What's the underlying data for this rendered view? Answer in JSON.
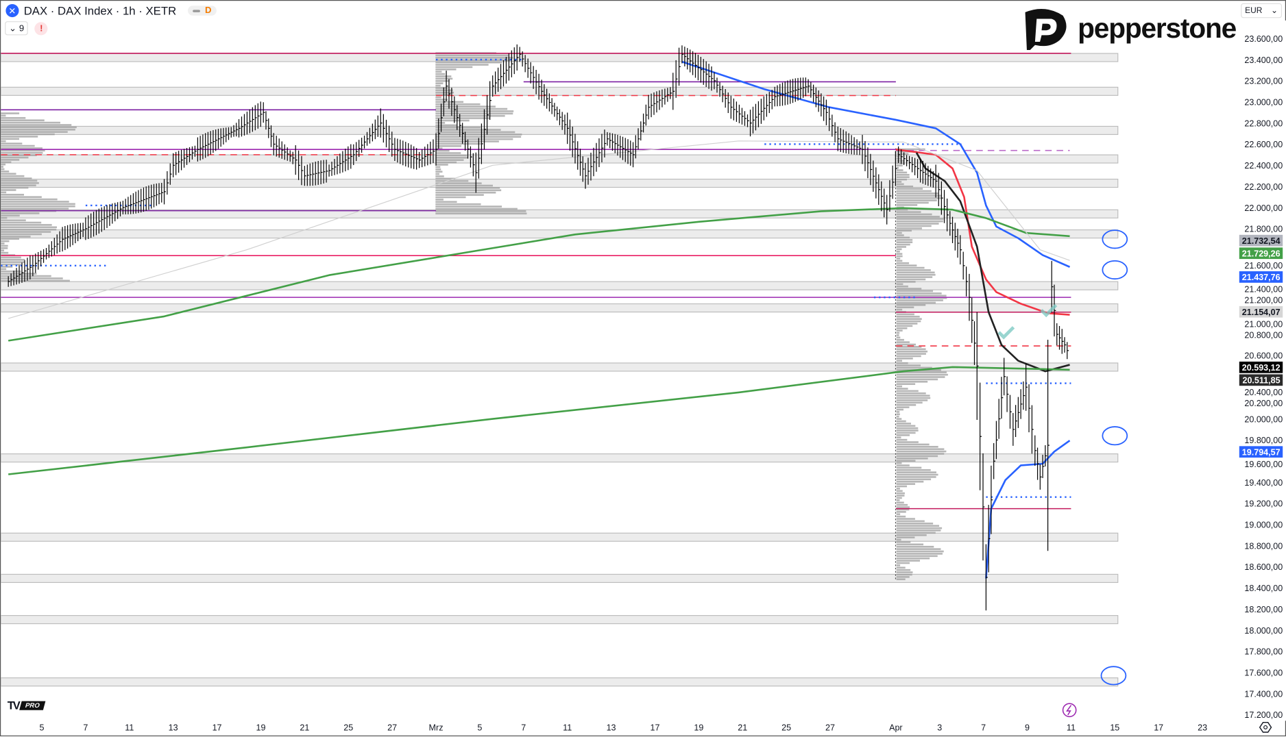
{
  "header": {
    "symbol_title": "DAX · DAX Index · 1h · XETR",
    "symbol_icon": "x-logo-icon",
    "badge": "D",
    "indicators_count": "9",
    "alert": "!"
  },
  "brand": {
    "name": "pepperstone"
  },
  "currency": "EUR",
  "watermark": {
    "text": "PRO"
  },
  "chart_data": {
    "type": "line",
    "title": "",
    "price_axis": [
      "23.600,00",
      "23.400,00",
      "23.200,00",
      "23.000,00",
      "22.800,00",
      "22.600,00",
      "22.400,00",
      "22.200,00",
      "22.000,00",
      "21.800,00",
      "21.600,00",
      "21.400,00",
      "21.200,00",
      "21.000,00",
      "20.800,00",
      "20.600,00",
      "20.400,00",
      "20.200,00",
      "20.000,00",
      "19.800,00",
      "19.600,00",
      "19.400,00",
      "19.200,00",
      "19.000,00",
      "18.800,00",
      "18.600,00",
      "18.400,00",
      "18.200,00",
      "18.000,00",
      "17.800,00",
      "17.600,00",
      "17.400,00",
      "17.200,00"
    ],
    "ylim": [
      17200,
      23600
    ],
    "time_axis": [
      "5",
      "7",
      "11",
      "13",
      "17",
      "19",
      "21",
      "25",
      "27",
      "Mrz",
      "5",
      "7",
      "11",
      "13",
      "17",
      "19",
      "21",
      "25",
      "27",
      "Apr",
      "3",
      "7",
      "9",
      "11",
      "15",
      "17",
      "23"
    ],
    "price_labels": [
      {
        "value": "21.732,54",
        "price": 21732.54,
        "bg": "#b2b5be",
        "fg": "#131722"
      },
      {
        "value": "21.729,26",
        "price": 21729.26,
        "bg": "#43a047",
        "fg": "#ffffff"
      },
      {
        "value": "21.437,76",
        "price": 21437.76,
        "bg": "#2962ff",
        "fg": "#ffffff"
      },
      {
        "value": "21.154,07",
        "price": 21154.07,
        "bg": "#d6d6d6",
        "fg": "#131722"
      },
      {
        "value": "20.593,12",
        "price": 20593.12,
        "bg": "#000000",
        "fg": "#ffffff"
      },
      {
        "value": "20.511,85",
        "price": 20511.85,
        "bg": "#2a2a2a",
        "fg": "#ffffff"
      },
      {
        "value": "19.794,57",
        "price": 19794.57,
        "bg": "#2962ff",
        "fg": "#ffffff"
      }
    ],
    "price": [
      [
        "Feb 3 13:00",
        21300
      ],
      [
        "Feb 4 14:00",
        21450
      ],
      [
        "Feb 5 17:00",
        21700
      ],
      [
        "Feb 7 09:00",
        21800
      ],
      [
        "Feb 10 15:00",
        22000
      ],
      [
        "Feb 12 14:00",
        22150
      ],
      [
        "Feb 13 09:00",
        22400
      ],
      [
        "Feb 14 10:00",
        22550
      ],
      [
        "Feb 18 09:00",
        22750
      ],
      [
        "Feb 19 10:00",
        22900
      ],
      [
        "Feb 19 14:00",
        22600
      ],
      [
        "Feb 20 14:00",
        22450
      ],
      [
        "Feb 21 09:00",
        22300
      ],
      [
        "Feb 24 10:00",
        22350
      ],
      [
        "Feb 25 11:00",
        22500
      ],
      [
        "Feb 26 13:00",
        22800
      ],
      [
        "Feb 27 10:00",
        22550
      ],
      [
        "Feb 28 11:00",
        22450
      ],
      [
        "Mrz 3 09:00",
        22550
      ],
      [
        "Mrz 3 13:00",
        23150
      ],
      [
        "Mrz 4 16:00",
        22330
      ],
      [
        "Mrz 5 14:00",
        23150
      ],
      [
        "Mrz 6 16:00",
        23450
      ],
      [
        "Mrz 7 16:00",
        23100
      ],
      [
        "Mrz 11 09:00",
        22750
      ],
      [
        "Mrz 11 16:00",
        22300
      ],
      [
        "Mrz 12 16:00",
        22650
      ],
      [
        "Mrz 14 09:00",
        22500
      ],
      [
        "Mrz 14 15:00",
        22950
      ],
      [
        "Mrz 17 16:00",
        23100
      ],
      [
        "Mrz 18 11:00",
        23450
      ],
      [
        "Mrz 19 15:00",
        23200
      ],
      [
        "Mrz 20 13:00",
        22950
      ],
      [
        "Mrz 21 12:00",
        22800
      ],
      [
        "Mrz 24 13:00",
        23050
      ],
      [
        "Mrz 26 09:00",
        23150
      ],
      [
        "Mrz 26 16:00",
        22900
      ],
      [
        "Mrz 27 12:00",
        22650
      ],
      [
        "Mrz 28 13:00",
        22550
      ],
      [
        "Mrz 31 14:00",
        21980
      ],
      [
        "Apr 1 10:00",
        22500
      ],
      [
        "Apr 2 10:00",
        22350
      ],
      [
        "Apr 2 16:00",
        22250
      ],
      [
        "Apr 3 13:00",
        21850
      ],
      [
        "Apr 3 17:00",
        21600
      ],
      [
        "Apr 4 12:00",
        21150
      ],
      [
        "Apr 4 15:00",
        20500
      ],
      [
        "Apr 7 10:00",
        18500
      ],
      [
        "Apr 7 13:00",
        19600
      ],
      [
        "Apr 7 17:00",
        20400
      ],
      [
        "Apr 8 12:00",
        19900
      ],
      [
        "Apr 8 17:00",
        20300
      ],
      [
        "Apr 9 12:00",
        19700
      ],
      [
        "Apr 9 14:00",
        19450
      ],
      [
        "Apr 9 17:00",
        19750
      ],
      [
        "Apr 10 10:00",
        21250
      ],
      [
        "Apr 10 12:00",
        20800
      ],
      [
        "Apr 10 15:00",
        20700
      ],
      [
        "Apr 10 17:00",
        20593
      ]
    ],
    "series": [
      {
        "color": "#2962ff",
        "points": [
          [
            "Mrz 18 11:00",
            23380
          ],
          [
            "Mrz 24 09:00",
            23120
          ],
          [
            "Mrz 26 17:00",
            22950
          ],
          [
            "Apr 1 09:00",
            22830
          ],
          [
            "Apr 2 16:00",
            22750
          ],
          [
            "Apr 3 17:00",
            22600
          ],
          [
            "Apr 4 15:00",
            22330
          ],
          [
            "Apr 7 10:00",
            22020
          ],
          [
            "Apr 7 14:00",
            21820
          ],
          [
            "Apr 8 14:00",
            21710
          ],
          [
            "Apr 9 15:00",
            21550
          ],
          [
            "Apr 10 17:00",
            21437.76
          ]
        ]
      },
      {
        "color": "#f23645",
        "points": [
          [
            "Apr 1 09:00",
            22550
          ],
          [
            "Apr 2 16:00",
            22500
          ],
          [
            "Apr 3 14:00",
            22370
          ],
          [
            "Apr 4 10:00",
            22100
          ],
          [
            "Apr 4 13:00",
            21630
          ],
          [
            "Apr 7 10:00",
            21320
          ],
          [
            "Apr 7 14:00",
            21200
          ],
          [
            "Apr 8 15:00",
            21090
          ],
          [
            "Apr 9 17:00",
            21000
          ],
          [
            "Apr 10 17:00",
            20985
          ]
        ]
      },
      {
        "color": "#222222",
        "points": [
          [
            "Apr 1 17:00",
            22520
          ],
          [
            "Apr 2 12:00",
            22370
          ],
          [
            "Apr 3 11:00",
            22250
          ],
          [
            "Apr 3 17:00",
            22060
          ],
          [
            "Apr 4 15:00",
            21630
          ],
          [
            "Apr 7 11:00",
            21010
          ],
          [
            "Apr 7 16:00",
            20700
          ],
          [
            "Apr 8 14:00",
            20550
          ],
          [
            "Apr 9 14:00",
            20470
          ],
          [
            "Apr 9 16:00",
            20450
          ],
          [
            "Apr 10 17:00",
            20511.85
          ]
        ]
      },
      {
        "color": "#43a047",
        "points": [
          [
            "Feb 3 13:00",
            20740
          ],
          [
            "Feb 12 14:00",
            20970
          ],
          [
            "Feb 24 10:00",
            21360
          ],
          [
            "Mrz 4 16:00",
            21590
          ],
          [
            "Mrz 11 12:00",
            21745
          ],
          [
            "Mrz 19 09:00",
            21865
          ],
          [
            "Mrz 26 14:00",
            21965
          ],
          [
            "Apr 1 12:00",
            21995
          ],
          [
            "Apr 3 14:00",
            21980
          ],
          [
            "Apr 7 10:00",
            21900
          ],
          [
            "Apr 8 17:00",
            21760
          ],
          [
            "Apr 10 17:00",
            21729.26
          ]
        ]
      },
      {
        "color": "#43a047",
        "points": [
          [
            "Feb 3 13:00",
            19475
          ],
          [
            "Feb 18 12:00",
            19730
          ],
          [
            "Mrz 5 14:00",
            20000
          ],
          [
            "Mrz 20 16:00",
            20250
          ],
          [
            "Apr 1 12:00",
            20450
          ],
          [
            "Apr 3 14:00",
            20490
          ],
          [
            "Apr 10 17:00",
            20465
          ]
        ]
      },
      {
        "color": "#2962ff",
        "points": [
          [
            "Apr 7 10:00",
            18490
          ],
          [
            "Apr 7 12:00",
            19150
          ],
          [
            "Apr 8 09:00",
            19420
          ],
          [
            "Apr 8 15:00",
            19560
          ],
          [
            "Apr 9 15:00",
            19575
          ],
          [
            "Apr 10 11:00",
            19690
          ],
          [
            "Apr 10 17:00",
            19794.57
          ]
        ]
      },
      {
        "color": "#d0d0d0",
        "points": [
          [
            "Feb 3 13:00",
            20950
          ],
          [
            "Feb 18 12:00",
            21600
          ],
          [
            "Mrz 5 14:00",
            22400
          ],
          [
            "Mrz 20 16:00",
            22630
          ],
          [
            "Apr 1 12:00",
            22620
          ],
          [
            "Apr 4 15:00",
            22350
          ],
          [
            "Apr 9 14:00",
            21600
          ],
          [
            "Apr 10 17:00",
            21500
          ]
        ]
      }
    ],
    "zones": [
      23420,
      23100,
      22730,
      22460,
      22230,
      21940,
      21750,
      21260,
      21050,
      20490,
      19630,
      18880,
      18490,
      18100,
      17510
    ],
    "levels": [
      {
        "price": 23460,
        "from": "Feb 3 09:00",
        "to": "Apr 11 09:00",
        "color": "#c2185b",
        "style": "solid"
      },
      {
        "price": 22925,
        "from": "Feb 3 09:00",
        "to": "Mrz 3 09:00",
        "color": "#7b1fa2",
        "style": "solid"
      },
      {
        "price": 21970,
        "from": "Feb 3 09:00",
        "to": "Mrz 3 09:00",
        "color": "#7b1fa2",
        "style": "solid"
      },
      {
        "price": 21545,
        "from": "Feb 3 09:00",
        "to": "Apr 1 09:00",
        "color": "#e91e63",
        "style": "solid"
      },
      {
        "price": 21150,
        "from": "Feb 3 09:00",
        "to": "Apr 11 09:00",
        "color": "#9c27b0",
        "style": "solid"
      },
      {
        "price": 22550,
        "from": "Feb 3 09:00",
        "to": "Apr 1 09:00",
        "color": "#9c27b0",
        "style": "solid"
      },
      {
        "price": 23190,
        "from": "Mrz 7 09:00",
        "to": "Apr 1 09:00",
        "color": "#7b1fa2",
        "style": "solid"
      },
      {
        "price": 21010,
        "from": "Apr 1 09:00",
        "to": "Apr 11 09:00",
        "color": "#c2185b",
        "style": "solid"
      },
      {
        "price": 19150,
        "from": "Apr 1 09:00",
        "to": "Apr 11 09:00",
        "color": "#c2185b",
        "style": "solid"
      },
      {
        "price": 22540,
        "from": "Apr 1 09:00",
        "to": "Apr 10 17:00",
        "color": "#ba68c8",
        "style": "dashed"
      },
      {
        "price": 20690,
        "from": "Apr 1 09:00",
        "to": "Apr 11 09:00",
        "color": "#f23645",
        "style": "dashed"
      },
      {
        "price": 23060,
        "from": "Mrz 3 09:00",
        "to": "Apr 1 09:00",
        "color": "#f23645",
        "style": "dashed"
      },
      {
        "price": 22500,
        "from": "Feb 3 09:00",
        "to": "Mrz 3 09:00",
        "color": "#f23645",
        "style": "dashed"
      },
      {
        "price": 20337,
        "from": "Apr 7 10:00",
        "to": "Apr 11 09:00",
        "color": "#2962ff",
        "style": "dotted"
      },
      {
        "price": 19260,
        "from": "Apr 7 10:00",
        "to": "Apr 11 09:00",
        "color": "#2962ff",
        "style": "dotted"
      },
      {
        "price": 21150,
        "from": "Mrz 31 09:00",
        "to": "Apr 2 09:00",
        "color": "#2962ff",
        "style": "dotted"
      },
      {
        "price": 22600,
        "from": "Mrz 24 09:00",
        "to": "Apr 4 09:00",
        "color": "#2962ff",
        "style": "dotted"
      },
      {
        "price": 23400,
        "from": "Mrz 3 09:00",
        "to": "Mrz 6 17:00",
        "color": "#2962ff",
        "style": "dotted"
      },
      {
        "price": 21450,
        "from": "Feb 3 09:00",
        "to": "Feb 7 17:00",
        "color": "#2962ff",
        "style": "dotted"
      },
      {
        "price": 22020,
        "from": "Feb 7 09:00",
        "to": "Feb 12 09:00",
        "color": "#2962ff",
        "style": "dotted"
      }
    ],
    "annotations": {
      "circles": [
        [
          21700,
          "Apr 15 09:00"
        ],
        [
          21410,
          "Apr 15 09:00"
        ],
        [
          19840,
          "Apr 15 09:00"
        ],
        [
          17570,
          "Apr 14 17:00"
        ]
      ],
      "checks": [
        [
          20820,
          "Apr 8 09:00"
        ],
        [
          21030,
          "Apr 9 17:00"
        ]
      ],
      "circle_color": "#2962ff",
      "check_color": "#80cbc4"
    }
  }
}
